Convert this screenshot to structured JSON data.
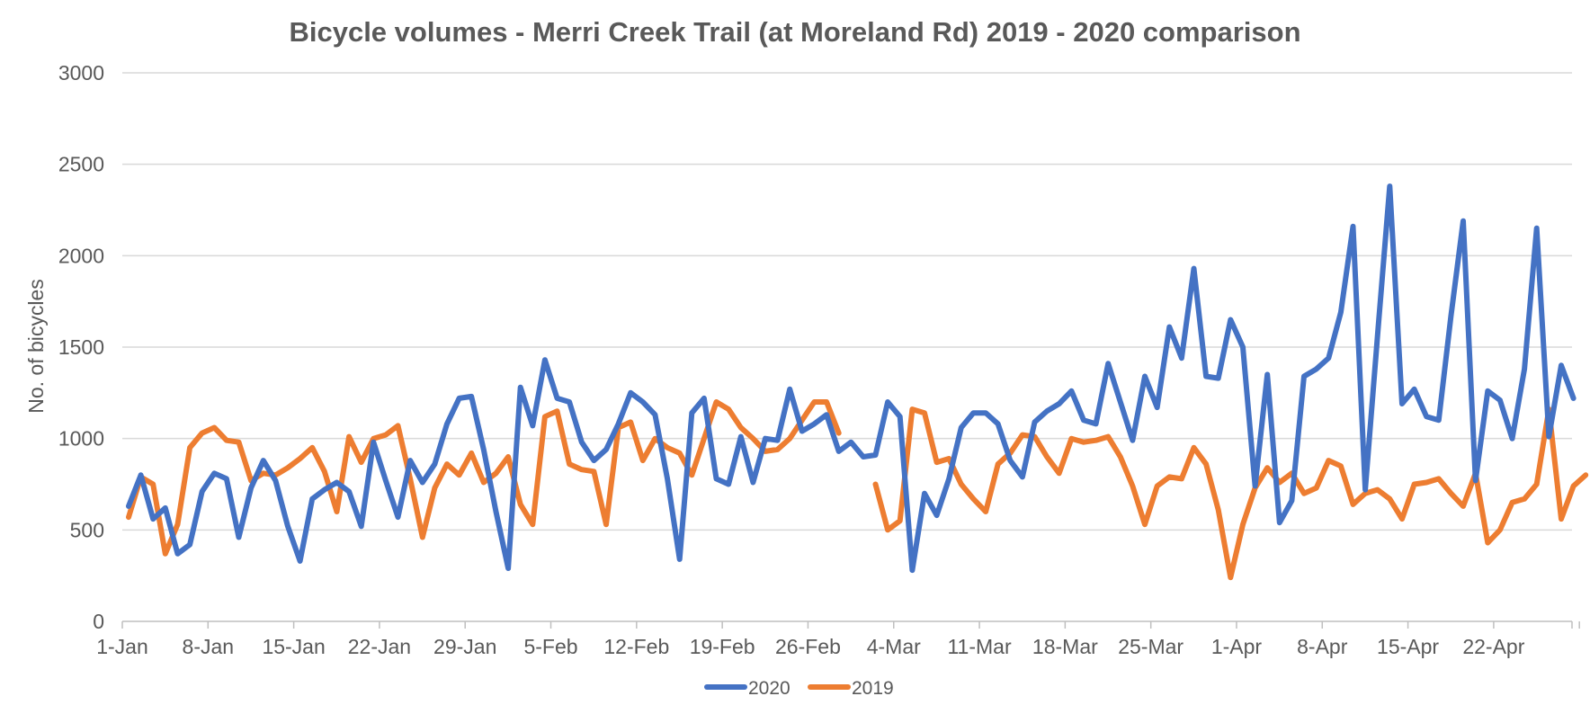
{
  "chart_data": {
    "type": "line",
    "title": "Bicycle volumes - Merri Creek Trail (at Moreland Rd) 2019 - 2020 comparison",
    "xlabel": "",
    "ylabel": "No. of bicycles",
    "ylim": [
      0,
      3000
    ],
    "yticks": [
      "0",
      "500",
      "1000",
      "1500",
      "2000",
      "2500",
      "3000"
    ],
    "xticks": [
      "1-Jan",
      "8-Jan",
      "15-Jan",
      "22-Jan",
      "29-Jan",
      "5-Feb",
      "12-Feb",
      "19-Feb",
      "26-Feb",
      "4-Mar",
      "11-Mar",
      "18-Mar",
      "25-Mar",
      "1-Apr",
      "8-Apr",
      "15-Apr",
      "22-Apr"
    ],
    "x_days": 120,
    "grid": true,
    "legend_position": "bottom",
    "series": [
      {
        "name": "2020",
        "color": "#4472c4",
        "values": [
          630,
          800,
          560,
          620,
          370,
          420,
          710,
          810,
          780,
          460,
          730,
          880,
          770,
          520,
          330,
          670,
          720,
          760,
          710,
          520,
          980,
          770,
          570,
          880,
          760,
          860,
          1080,
          1220,
          1230,
          940,
          600,
          290,
          1280,
          1070,
          1430,
          1220,
          1200,
          980,
          880,
          940,
          1080,
          1250,
          1200,
          1130,
          780,
          340,
          1140,
          1220,
          780,
          750,
          1010,
          760,
          1000,
          990,
          1270,
          1040,
          1080,
          1130,
          930,
          980,
          900,
          910,
          1200,
          1120,
          280,
          700,
          580,
          780,
          1060,
          1140,
          1140,
          1080,
          880,
          790,
          1090,
          1150,
          1190,
          1260,
          1100,
          1080,
          1410,
          1200,
          990,
          1340,
          1170,
          1610,
          1440,
          1930,
          1340,
          1330,
          1650,
          1500,
          740,
          1350,
          540,
          660,
          1340,
          1380,
          1440,
          1690,
          2160,
          720,
          1560,
          2380,
          1190,
          1270,
          1120,
          1100,
          1670,
          2190,
          770,
          1260,
          1210,
          1000,
          1380,
          2150,
          1010,
          1400,
          1220
        ]
      },
      {
        "name": "2019",
        "color": "#ed7d31",
        "values": [
          570,
          790,
          750,
          370,
          530,
          950,
          1030,
          1060,
          990,
          980,
          770,
          810,
          800,
          840,
          890,
          950,
          820,
          600,
          1010,
          870,
          1000,
          1020,
          1070,
          780,
          460,
          730,
          860,
          800,
          920,
          760,
          810,
          900,
          640,
          530,
          1120,
          1150,
          860,
          830,
          820,
          530,
          1060,
          1090,
          880,
          1000,
          950,
          920,
          800,
          1000,
          1200,
          1160,
          1060,
          1000,
          930,
          940,
          1000,
          1100,
          1200,
          1200,
          1030,
          null,
          null,
          750,
          500,
          550,
          1160,
          1140,
          870,
          890,
          750,
          670,
          600,
          860,
          920,
          1020,
          1010,
          900,
          810,
          1000,
          980,
          990,
          1010,
          900,
          740,
          530,
          740,
          790,
          780,
          950,
          860,
          610,
          240,
          530,
          730,
          840,
          760,
          810,
          700,
          730,
          880,
          850,
          640,
          700,
          720,
          670,
          560,
          750,
          760,
          780,
          700,
          630,
          810,
          430,
          500,
          650,
          670,
          750,
          1160,
          560,
          740,
          800
        ]
      }
    ]
  }
}
